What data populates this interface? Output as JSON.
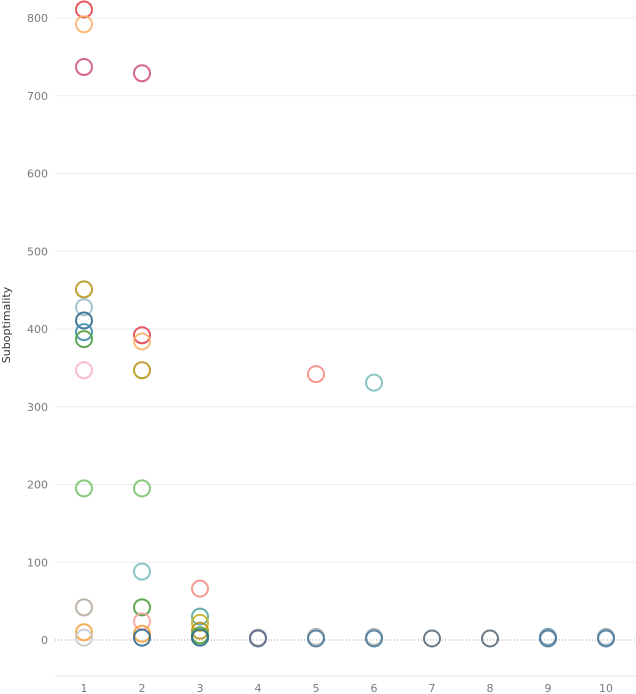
{
  "chart_data": {
    "type": "scatter",
    "title": "",
    "xlabel": "",
    "ylabel": "Suboptimality",
    "x_ticks": [
      1,
      2,
      3,
      4,
      5,
      6,
      7,
      8,
      9,
      10
    ],
    "y_ticks": [
      0,
      100,
      200,
      300,
      400,
      500,
      600,
      700,
      800
    ],
    "xlim": [
      0.6,
      10.6
    ],
    "ylim": [
      -60,
      825
    ],
    "grid": true,
    "legend": "none",
    "marker": "hollow-circle",
    "zero_line": "dotted",
    "points": [
      {
        "x": 1,
        "y": 811,
        "color": "#e0454f"
      },
      {
        "x": 1,
        "y": 792,
        "color": "#f9b36b"
      },
      {
        "x": 1,
        "y": 737,
        "color": "#d0577f"
      },
      {
        "x": 1,
        "y": 451,
        "color": "#b8961c"
      },
      {
        "x": 1,
        "y": 428,
        "color": "#9cc0cc"
      },
      {
        "x": 1,
        "y": 411,
        "color": "#2f6a8c"
      },
      {
        "x": 1,
        "y": 396,
        "color": "#3f8fb0"
      },
      {
        "x": 1,
        "y": 387,
        "color": "#4f9f3f"
      },
      {
        "x": 1,
        "y": 347,
        "color": "#f7b6c8"
      },
      {
        "x": 1,
        "y": 195,
        "color": "#7bc46d"
      },
      {
        "x": 1,
        "y": 42,
        "color": "#b5aba0"
      },
      {
        "x": 1,
        "y": 10,
        "color": "#f4a340"
      },
      {
        "x": 1,
        "y": 3,
        "color": "#c8c8c8"
      },
      {
        "x": 2,
        "y": 729,
        "color": "#d0577f"
      },
      {
        "x": 2,
        "y": 392,
        "color": "#e0454f"
      },
      {
        "x": 2,
        "y": 384,
        "color": "#f9b36b"
      },
      {
        "x": 2,
        "y": 347,
        "color": "#b8961c"
      },
      {
        "x": 2,
        "y": 195,
        "color": "#7bc46d"
      },
      {
        "x": 2,
        "y": 88,
        "color": "#7ebfbf"
      },
      {
        "x": 2,
        "y": 42,
        "color": "#4f9f3f"
      },
      {
        "x": 2,
        "y": 24,
        "color": "#f7a5a0"
      },
      {
        "x": 2,
        "y": 8,
        "color": "#f4a340"
      },
      {
        "x": 2,
        "y": 3,
        "color": "#2f6a8c"
      },
      {
        "x": 3,
        "y": 66,
        "color": "#f28e84"
      },
      {
        "x": 3,
        "y": 30,
        "color": "#5aa8a8"
      },
      {
        "x": 3,
        "y": 22,
        "color": "#c9b12a"
      },
      {
        "x": 3,
        "y": 12,
        "color": "#b8961c"
      },
      {
        "x": 3,
        "y": 6,
        "color": "#4f9f3f"
      },
      {
        "x": 3,
        "y": 3,
        "color": "#2f6a8c"
      },
      {
        "x": 4,
        "y": 3,
        "color": "#a8a8a8"
      },
      {
        "x": 4,
        "y": 2,
        "color": "#5a6a8c"
      },
      {
        "x": 5,
        "y": 342,
        "color": "#f28e84"
      },
      {
        "x": 5,
        "y": 4,
        "color": "#b5b5b5"
      },
      {
        "x": 5,
        "y": 2,
        "color": "#4a7a9c"
      },
      {
        "x": 6,
        "y": 331,
        "color": "#7ebfbf"
      },
      {
        "x": 6,
        "y": 4,
        "color": "#b5b5b5"
      },
      {
        "x": 6,
        "y": 2,
        "color": "#4a7a9c"
      },
      {
        "x": 7,
        "y": 2,
        "color": "#5a6a7c"
      },
      {
        "x": 8,
        "y": 2,
        "color": "#5a6a7c"
      },
      {
        "x": 9,
        "y": 4,
        "color": "#7a9aac"
      },
      {
        "x": 9,
        "y": 2,
        "color": "#4a7a9c"
      },
      {
        "x": 10,
        "y": 4,
        "color": "#9aaab5"
      },
      {
        "x": 10,
        "y": 2,
        "color": "#4a7a9c"
      }
    ]
  }
}
